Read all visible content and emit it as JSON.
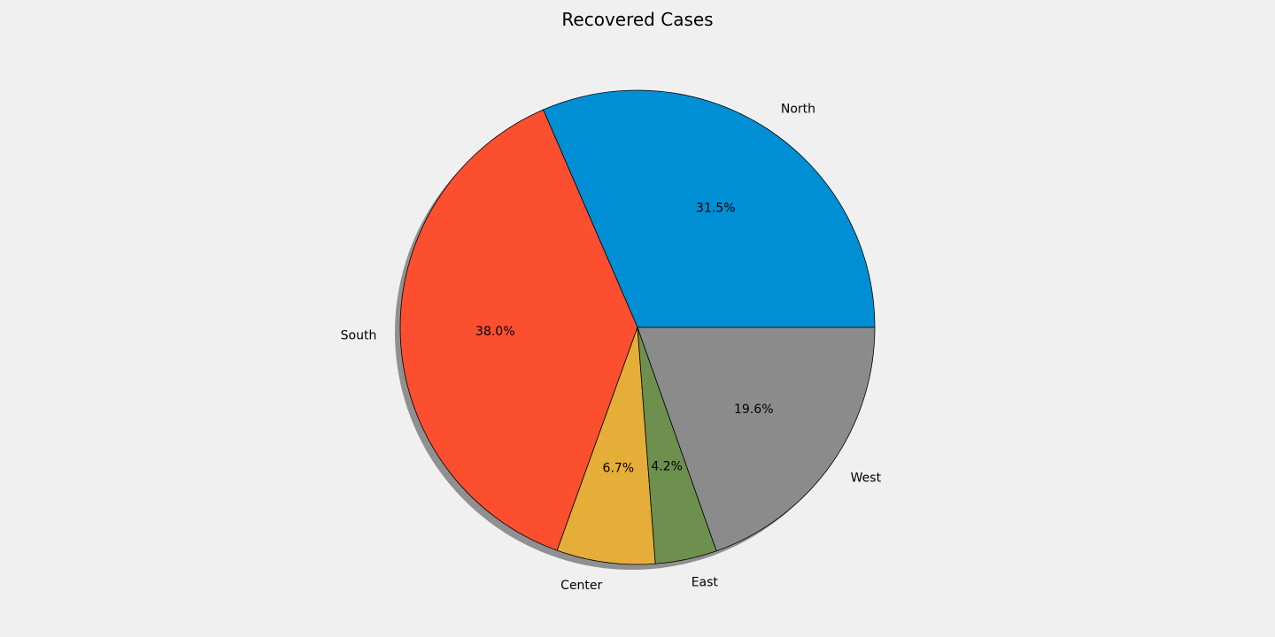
{
  "chart_data": {
    "type": "pie",
    "title": "Recovered Cases",
    "categories": [
      "North",
      "South",
      "Center",
      "East",
      "West"
    ],
    "values": [
      31.5,
      38.0,
      6.7,
      4.2,
      19.6
    ],
    "percent_labels": [
      "31.5%",
      "38.0%",
      "6.7%",
      "4.2%",
      "19.6%"
    ],
    "colors": [
      "#008fd5",
      "#fc4f30",
      "#e5ae38",
      "#6d904f",
      "#8b8b8b"
    ],
    "start_angle_degrees": 0,
    "direction": "counterclockwise",
    "shadow": true,
    "edge_color": "#000000",
    "legend": "none",
    "background": "#f0f0f0"
  }
}
